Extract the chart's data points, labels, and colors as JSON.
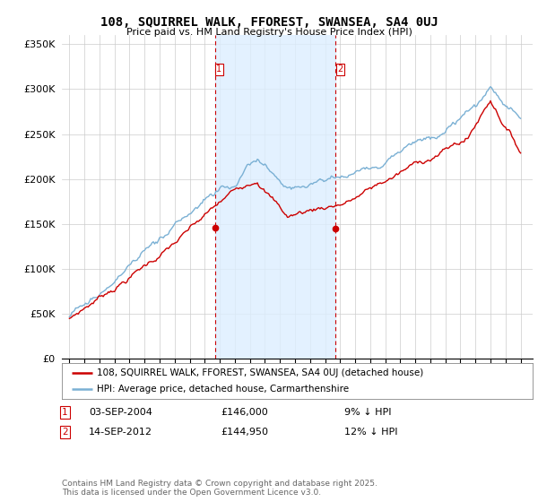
{
  "title": "108, SQUIRREL WALK, FFOREST, SWANSEA, SA4 0UJ",
  "subtitle": "Price paid vs. HM Land Registry's House Price Index (HPI)",
  "sale1_date": "03-SEP-2004",
  "sale1_price": 146000,
  "sale1_label": "9% ↓ HPI",
  "sale2_date": "14-SEP-2012",
  "sale2_price": 144950,
  "sale2_label": "12% ↓ HPI",
  "sale1_x": 2004.67,
  "sale2_x": 2012.71,
  "legend_line1": "108, SQUIRREL WALK, FFOREST, SWANSEA, SA4 0UJ (detached house)",
  "legend_line2": "HPI: Average price, detached house, Carmarthenshire",
  "footer": "Contains HM Land Registry data © Crown copyright and database right 2025.\nThis data is licensed under the Open Government Licence v3.0.",
  "property_color": "#cc0000",
  "hpi_color": "#7ab0d4",
  "shade_color": "#ddeeff",
  "vline_color": "#cc0000",
  "background_color": "#ffffff",
  "grid_color": "#cccccc",
  "ylim": [
    0,
    360000
  ],
  "xlim": [
    1994.5,
    2025.8
  ],
  "yticks": [
    0,
    50000,
    100000,
    150000,
    200000,
    250000,
    300000,
    350000
  ],
  "ytick_labels": [
    "£0",
    "£50K",
    "£100K",
    "£150K",
    "£200K",
    "£250K",
    "£300K",
    "£350K"
  ]
}
